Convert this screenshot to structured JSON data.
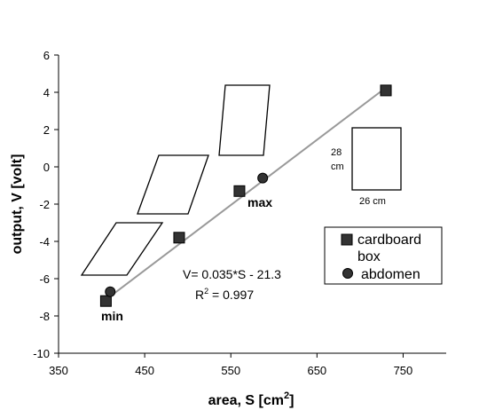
{
  "chart_data": {
    "type": "scatter",
    "x_axis": {
      "label": "area, S  [cm",
      "label_sup": "2",
      "label_close": "]",
      "min": 350,
      "max": 800,
      "ticks": [
        350,
        450,
        550,
        650,
        750
      ]
    },
    "y_axis": {
      "label": "output, V  [volt]",
      "min": -10,
      "max": 6,
      "ticks": [
        6,
        4,
        2,
        0,
        -2,
        -4,
        -6,
        -8,
        -10
      ]
    },
    "series": [
      {
        "name": "cardboard box",
        "marker": "square",
        "points": [
          [
            405,
            -7.2
          ],
          [
            490,
            -3.8
          ],
          [
            560,
            -1.3
          ],
          [
            730,
            4.1
          ]
        ]
      },
      {
        "name": "abdomen",
        "marker": "circle",
        "points": [
          [
            410,
            -6.7
          ],
          [
            587,
            -0.6
          ]
        ]
      }
    ],
    "fit": {
      "slope": 0.035,
      "intercept": -21.3,
      "x_range": [
        405,
        730
      ],
      "color": "#999999"
    },
    "equation": "V= 0.035*S - 21.3",
    "r2_prefix": "R",
    "r2_sup": "2",
    "r2_suffix": " = 0.997",
    "point_labels": {
      "min": "min",
      "max": "max"
    },
    "box_dims": {
      "height": "28",
      "height_unit": "cm",
      "width": "26 cm"
    },
    "legend_labels": {
      "cardboard_line1": "cardboard",
      "cardboard_line2": "box",
      "abdomen": "abdomen"
    }
  }
}
